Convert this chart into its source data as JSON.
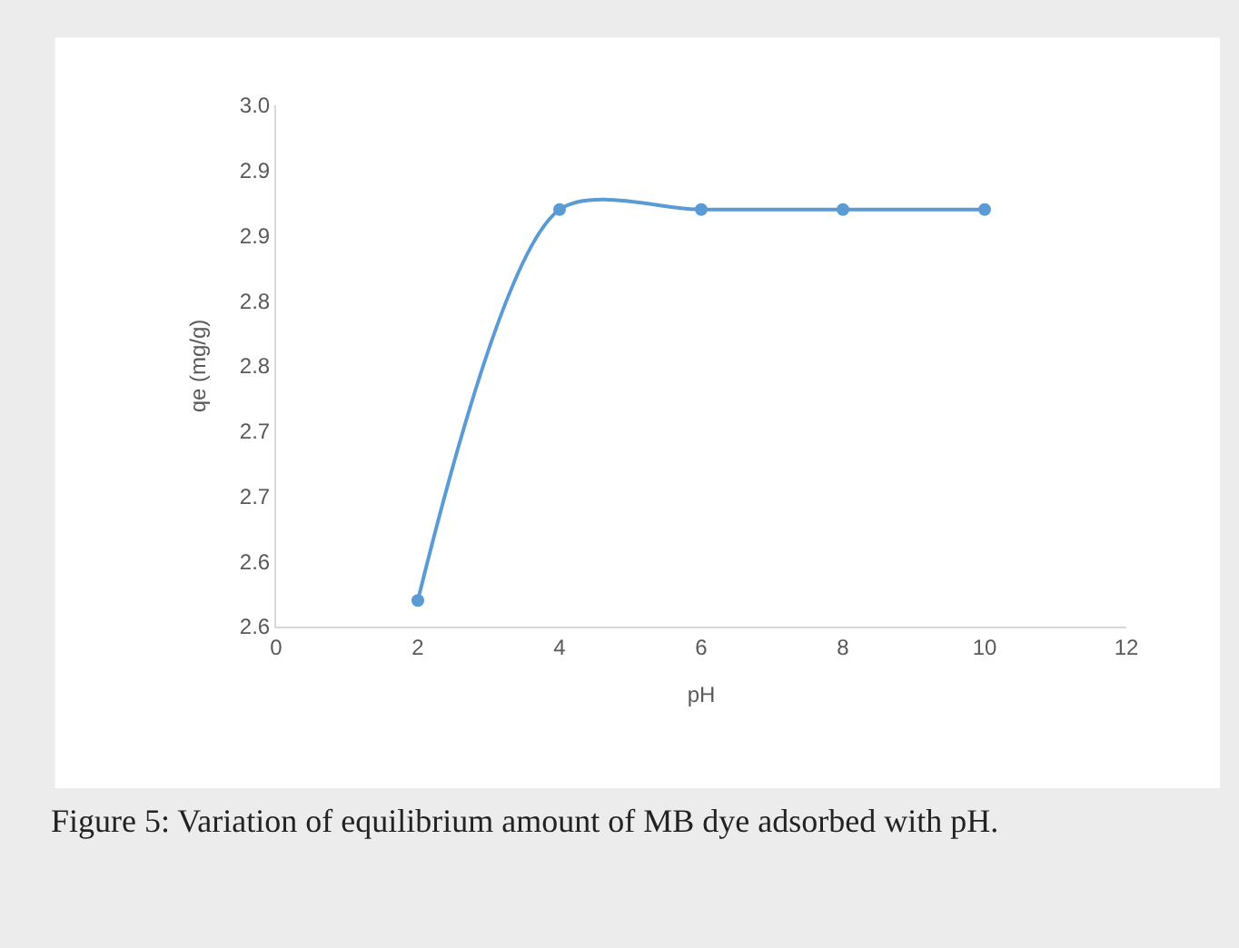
{
  "chart_data": {
    "type": "line",
    "xlabel": "pH",
    "ylabel": "qe (mg/g)",
    "x": [
      2,
      4,
      6,
      8,
      10
    ],
    "series": [
      {
        "color": "#5b9bd5",
        "values": [
          2.62,
          2.92,
          2.92,
          2.92,
          2.92
        ]
      }
    ],
    "xlim": [
      0,
      12
    ],
    "xticks": [
      0,
      2,
      4,
      6,
      8,
      10,
      12
    ],
    "ylim": [
      2.6,
      3.0
    ],
    "yticks": [
      {
        "value": 2.6,
        "label": "2.6"
      },
      {
        "value": 2.65,
        "label": "2.6"
      },
      {
        "value": 2.7,
        "label": "2.7"
      },
      {
        "value": 2.75,
        "label": "2.7"
      },
      {
        "value": 2.8,
        "label": "2.8"
      },
      {
        "value": 2.85,
        "label": "2.8"
      },
      {
        "value": 2.9,
        "label": "2.9"
      },
      {
        "value": 2.95,
        "label": "2.9"
      },
      {
        "value": 3.0,
        "label": "3.0"
      }
    ],
    "marker": "circle",
    "line_style": "solid",
    "annotations": [
      "Figure 5: Variation of equilibrium amount of MB dye adsorbed with pH."
    ]
  }
}
